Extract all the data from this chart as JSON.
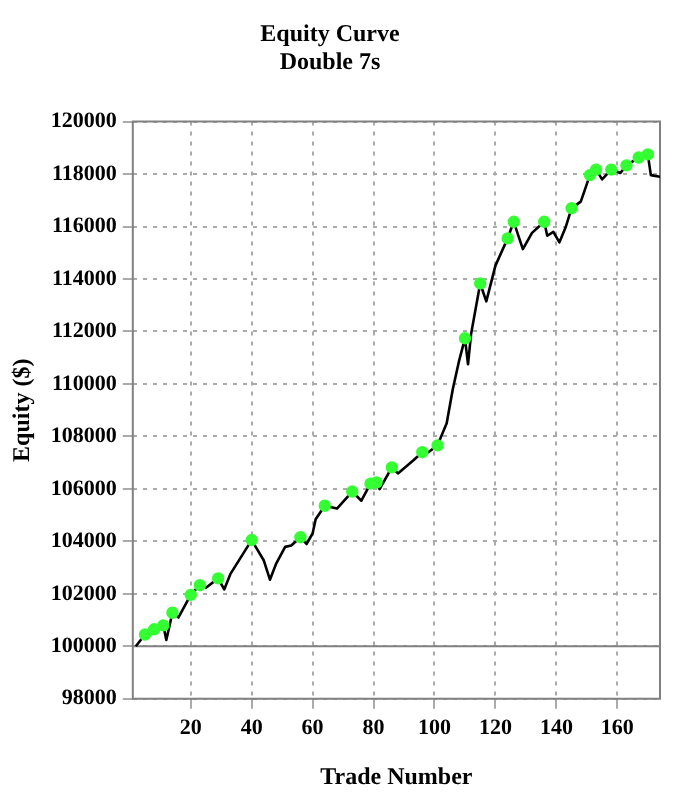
{
  "chart_data": {
    "type": "line",
    "title": "Equity Curve",
    "subtitle": "Double 7s",
    "xlabel": "Trade Number",
    "ylabel": "Equity ($)",
    "xlim": [
      1,
      174
    ],
    "xticks": [
      20,
      40,
      60,
      80,
      100,
      120,
      140,
      160
    ],
    "ylim": [
      98000,
      120000
    ],
    "yticks": [
      98000,
      100000,
      102000,
      104000,
      106000,
      108000,
      110000,
      112000,
      114000,
      116000,
      118000,
      120000
    ],
    "grid": true,
    "ref_lines": [
      {
        "axis": "y",
        "value": 100000,
        "color": "#808080",
        "line_style": "solid"
      }
    ],
    "series": [
      {
        "color": "#000000",
        "marker": "none",
        "x": [
          2,
          5,
          8,
          11,
          12,
          14,
          16,
          20,
          23,
          25,
          29,
          31,
          33,
          40,
          44,
          46,
          48,
          51,
          53,
          56,
          58,
          60,
          61,
          64,
          68,
          73,
          76,
          79,
          81,
          82,
          86,
          88,
          93,
          96,
          98,
          101,
          104,
          106,
          108,
          110,
          111,
          112,
          115,
          117,
          120,
          124,
          126,
          129,
          132,
          136,
          137,
          139,
          141,
          143,
          145,
          148,
          151,
          153,
          155,
          158,
          161,
          163,
          167,
          170,
          171,
          174
        ],
        "values": [
          100000,
          100450,
          100650,
          100800,
          100240,
          101280,
          101100,
          101960,
          102330,
          102230,
          102590,
          102170,
          102750,
          104050,
          103270,
          102540,
          103140,
          103790,
          103840,
          104160,
          103900,
          104300,
          104840,
          105360,
          105250,
          105900,
          105550,
          106200,
          106250,
          105990,
          106820,
          106590,
          107080,
          107400,
          107400,
          107660,
          108500,
          109800,
          110850,
          111740,
          110750,
          111900,
          113830,
          113150,
          114510,
          115550,
          116180,
          115140,
          115760,
          116180,
          115650,
          115800,
          115400,
          115960,
          116700,
          116950,
          117960,
          118170,
          117800,
          118170,
          118040,
          118330,
          118630,
          118750,
          117960,
          117900
        ]
      },
      {
        "type": "scatter",
        "color": "#33ff33",
        "marker": "circle",
        "x": [
          5,
          8,
          11,
          14,
          20,
          23,
          29,
          40,
          56,
          64,
          73,
          79,
          81,
          86,
          96,
          101,
          110,
          115,
          124,
          126,
          136,
          145,
          151,
          153,
          158,
          163,
          167,
          170
        ],
        "values": [
          100450,
          100650,
          100800,
          101280,
          101960,
          102330,
          102590,
          104050,
          104160,
          105360,
          105900,
          106200,
          106250,
          106820,
          107400,
          107660,
          111740,
          113830,
          115550,
          116180,
          116180,
          116700,
          117960,
          118170,
          118170,
          118330,
          118630,
          118750
        ]
      }
    ]
  }
}
